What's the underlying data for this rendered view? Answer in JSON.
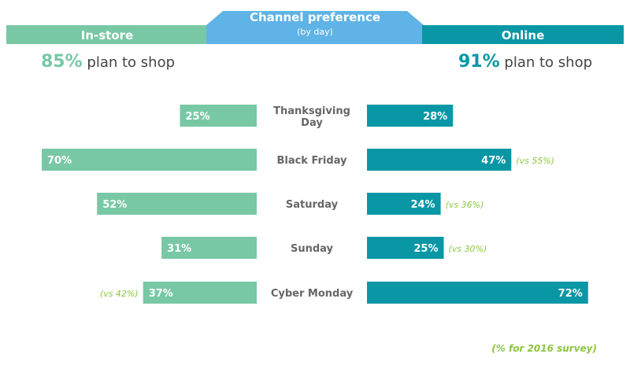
{
  "colors": {
    "instore": "#78c8a5",
    "online": "#0a97a5",
    "header_center": "#5fb3e6",
    "comparison_text": "#8cc63f",
    "category_text": "#666666"
  },
  "header": {
    "left_label": "In-store",
    "center_title": "Channel preference",
    "center_subtitle": "(by day)",
    "right_label": "Online"
  },
  "summary": {
    "instore_pct": "85%",
    "online_pct": "91%",
    "text": "plan to shop"
  },
  "footnote": "(% for 2016 survey)",
  "chart_data": {
    "type": "bar",
    "categories": [
      [
        "Thanksgiving",
        "Day"
      ],
      [
        "Black Friday"
      ],
      [
        "Saturday"
      ],
      [
        "Sunday"
      ],
      [
        "Cyber Monday"
      ]
    ],
    "series": [
      {
        "name": "In-store",
        "values": [
          25,
          70,
          52,
          31,
          37
        ],
        "comparison": [
          null,
          null,
          null,
          null,
          "(vs 42%)"
        ]
      },
      {
        "name": "Online",
        "values": [
          28,
          47,
          24,
          25,
          72
        ],
        "comparison": [
          null,
          "(vs 55%)",
          "(vs 36%)",
          "(vs 30%)",
          null
        ]
      }
    ],
    "value_suffix": "%"
  }
}
